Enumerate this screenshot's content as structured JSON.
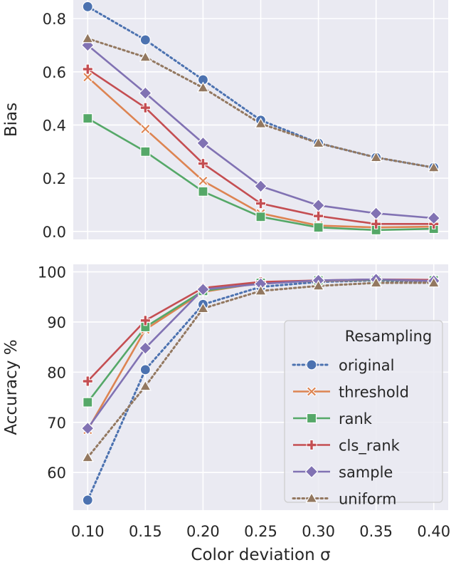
{
  "chart_data": [
    {
      "type": "line",
      "panel": "top",
      "ylabel": "Bias",
      "xlabel": "",
      "x": [
        0.1,
        0.15,
        0.2,
        0.25,
        0.3,
        0.35,
        0.4
      ],
      "x_ticks": [
        "0.10",
        "0.15",
        "0.20",
        "0.25",
        "0.30",
        "0.35",
        "0.40"
      ],
      "ylim": [
        -0.03,
        0.87
      ],
      "y_ticks": [
        0.0,
        0.2,
        0.4,
        0.6,
        0.8
      ],
      "y_tick_labels": [
        "0.0",
        "0.2",
        "0.4",
        "0.6",
        "0.8"
      ],
      "grid": true,
      "series": [
        {
          "name": "original",
          "values": [
            0.845,
            0.72,
            0.57,
            0.418,
            0.332,
            0.278,
            0.24
          ]
        },
        {
          "name": "threshold",
          "values": [
            0.58,
            0.385,
            0.19,
            0.068,
            0.022,
            0.015,
            0.018
          ]
        },
        {
          "name": "rank",
          "values": [
            0.425,
            0.3,
            0.15,
            0.055,
            0.015,
            0.005,
            0.01
          ]
        },
        {
          "name": "cls_rank",
          "values": [
            0.61,
            0.465,
            0.255,
            0.105,
            0.058,
            0.028,
            0.028
          ]
        },
        {
          "name": "sample",
          "values": [
            0.7,
            0.52,
            0.332,
            0.17,
            0.098,
            0.068,
            0.05
          ]
        },
        {
          "name": "uniform",
          "values": [
            0.725,
            0.655,
            0.54,
            0.405,
            0.332,
            0.278,
            0.24
          ]
        }
      ]
    },
    {
      "type": "line",
      "panel": "bottom",
      "ylabel": "Accuracy %",
      "xlabel": "Color deviation σ",
      "x": [
        0.1,
        0.15,
        0.2,
        0.25,
        0.3,
        0.35,
        0.4
      ],
      "x_ticks": [
        "0.10",
        "0.15",
        "0.20",
        "0.25",
        "0.30",
        "0.35",
        "0.40"
      ],
      "ylim": [
        52.5,
        101.5
      ],
      "y_ticks": [
        60,
        70,
        80,
        90,
        100
      ],
      "y_tick_labels": [
        "60",
        "70",
        "80",
        "90",
        "100"
      ],
      "grid": true,
      "legend_title": "Resampling",
      "legend_position": "lower-right",
      "series": [
        {
          "name": "original",
          "values": [
            54.5,
            80.5,
            93.5,
            97.0,
            98.0,
            98.3,
            98.0
          ]
        },
        {
          "name": "threshold",
          "values": [
            68.5,
            88.5,
            96.0,
            97.8,
            98.2,
            98.4,
            98.2
          ]
        },
        {
          "name": "rank",
          "values": [
            74.0,
            89.0,
            96.2,
            97.8,
            98.3,
            98.4,
            98.3
          ]
        },
        {
          "name": "cls_rank",
          "values": [
            78.2,
            90.3,
            96.8,
            98.0,
            98.3,
            98.5,
            98.4
          ]
        },
        {
          "name": "sample",
          "values": [
            68.8,
            84.8,
            96.5,
            97.6,
            98.3,
            98.5,
            98.2
          ]
        },
        {
          "name": "uniform",
          "values": [
            63.0,
            77.2,
            92.7,
            96.2,
            97.2,
            97.8,
            97.8
          ]
        }
      ]
    }
  ],
  "series_styles": {
    "original": {
      "color": "#4c72b0",
      "dash": "dotted",
      "marker": "circle"
    },
    "threshold": {
      "color": "#dd8452",
      "dash": "solid",
      "marker": "x"
    },
    "rank": {
      "color": "#55a868",
      "dash": "solid",
      "marker": "square"
    },
    "cls_rank": {
      "color": "#c44e52",
      "dash": "solid",
      "marker": "plus"
    },
    "sample": {
      "color": "#8172b3",
      "dash": "solid",
      "marker": "diamond"
    },
    "uniform": {
      "color": "#937860",
      "dash": "dotted",
      "marker": "triangle"
    }
  },
  "panel_background": "#eaeaf2",
  "grid_color": "#ffffff"
}
